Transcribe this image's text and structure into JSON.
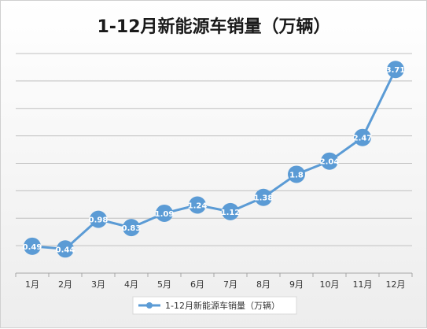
{
  "chart_data": {
    "type": "line",
    "title": "1-12月新能源车销量（万辆）",
    "categories": [
      "1月",
      "2月",
      "3月",
      "4月",
      "5月",
      "6月",
      "7月",
      "8月",
      "9月",
      "10月",
      "11月",
      "12月"
    ],
    "series": [
      {
        "name": "1-12月新能源车销量（万辆）",
        "values": [
          0.49,
          0.44,
          0.98,
          0.83,
          1.09,
          1.24,
          1.12,
          1.38,
          1.8,
          2.04,
          2.47,
          3.71
        ],
        "labels": [
          "0.49",
          "0.44",
          "0.98",
          "0.83",
          "1.09",
          "1.24",
          "1.12",
          "1.38",
          "1.8",
          "2.04",
          "2.47",
          "3.71"
        ]
      }
    ],
    "ylim": [
      0,
      4
    ],
    "grid": true,
    "legend": "bottom",
    "colors": {
      "series": "#5b9bd5",
      "grid": "#bfbfbf",
      "axis": "#a6a6a6"
    }
  }
}
